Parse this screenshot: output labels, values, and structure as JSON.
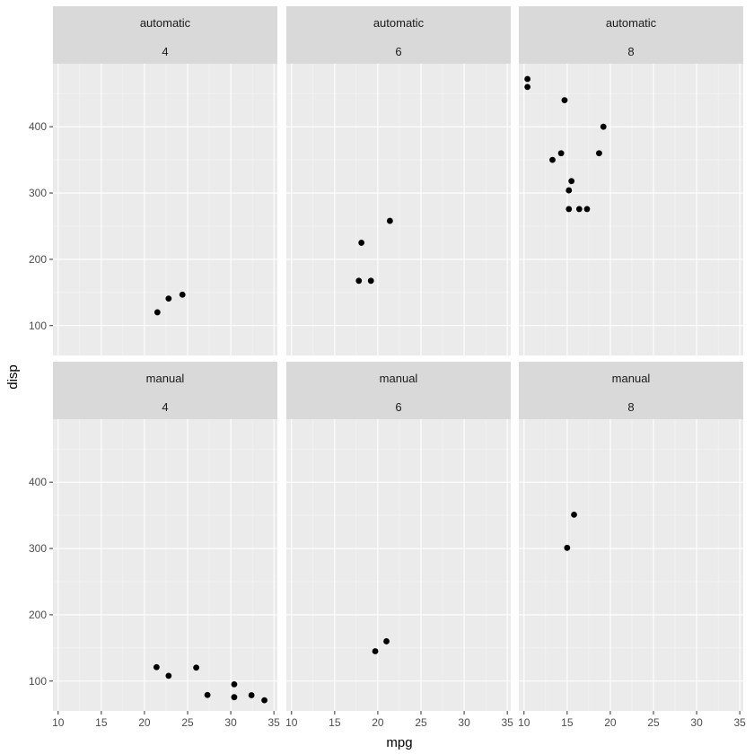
{
  "chart_data": {
    "type": "scatter",
    "facet": "grid",
    "xlabel": "mpg",
    "ylabel": "disp",
    "xlim": [
      9.4,
      35.4
    ],
    "ylim": [
      55,
      495
    ],
    "x_ticks": [
      10,
      15,
      20,
      25,
      30,
      35
    ],
    "y_ticks": [
      100,
      200,
      300,
      400
    ],
    "colors": {
      "panel_bg": "#ebebeb",
      "grid_major": "#ffffff",
      "grid_minor": "#f5f5f5",
      "strip_bg": "#d9d9d9",
      "point": "#000000"
    },
    "panels": [
      {
        "row_label": "automatic",
        "col_label": "4",
        "points": [
          {
            "x": 21.5,
            "y": 120.1
          },
          {
            "x": 22.8,
            "y": 140.8
          },
          {
            "x": 24.4,
            "y": 146.7
          }
        ]
      },
      {
        "row_label": "automatic",
        "col_label": "6",
        "points": [
          {
            "x": 21.4,
            "y": 258
          },
          {
            "x": 18.1,
            "y": 225
          },
          {
            "x": 19.2,
            "y": 167.6
          },
          {
            "x": 17.8,
            "y": 167.6
          }
        ]
      },
      {
        "row_label": "automatic",
        "col_label": "8",
        "points": [
          {
            "x": 18.7,
            "y": 360
          },
          {
            "x": 14.3,
            "y": 360
          },
          {
            "x": 16.4,
            "y": 275.8
          },
          {
            "x": 17.3,
            "y": 275.8
          },
          {
            "x": 15.2,
            "y": 275.8
          },
          {
            "x": 10.4,
            "y": 472
          },
          {
            "x": 10.4,
            "y": 460
          },
          {
            "x": 14.7,
            "y": 440
          },
          {
            "x": 15.5,
            "y": 318
          },
          {
            "x": 15.2,
            "y": 304
          },
          {
            "x": 13.3,
            "y": 350
          },
          {
            "x": 19.2,
            "y": 400
          }
        ]
      },
      {
        "row_label": "manual",
        "col_label": "4",
        "points": [
          {
            "x": 22.8,
            "y": 108
          },
          {
            "x": 32.4,
            "y": 78.7
          },
          {
            "x": 30.4,
            "y": 75.7
          },
          {
            "x": 33.9,
            "y": 71.1
          },
          {
            "x": 27.3,
            "y": 79
          },
          {
            "x": 26.0,
            "y": 120.3
          },
          {
            "x": 30.4,
            "y": 95.1
          },
          {
            "x": 21.4,
            "y": 121
          }
        ]
      },
      {
        "row_label": "manual",
        "col_label": "6",
        "points": [
          {
            "x": 21.0,
            "y": 160
          },
          {
            "x": 19.7,
            "y": 145
          }
        ]
      },
      {
        "row_label": "manual",
        "col_label": "8",
        "points": [
          {
            "x": 15.8,
            "y": 351
          },
          {
            "x": 15.0,
            "y": 301
          }
        ]
      }
    ]
  }
}
